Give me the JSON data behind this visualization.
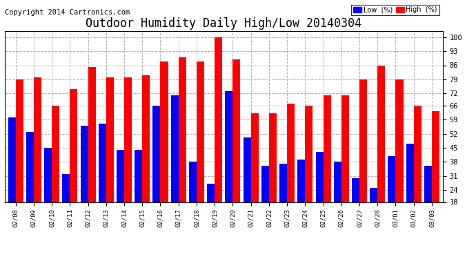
{
  "title": "Outdoor Humidity Daily High/Low 20140304",
  "copyright": "Copyright 2014 Cartronics.com",
  "dates": [
    "02/08",
    "02/09",
    "02/10",
    "02/11",
    "02/12",
    "02/13",
    "02/14",
    "02/15",
    "02/16",
    "02/17",
    "02/18",
    "02/19",
    "02/20",
    "02/21",
    "02/22",
    "02/23",
    "02/24",
    "02/25",
    "02/26",
    "02/27",
    "02/28",
    "03/01",
    "03/02",
    "03/03"
  ],
  "high": [
    79,
    80,
    66,
    74,
    85,
    80,
    80,
    81,
    88,
    90,
    88,
    100,
    89,
    62,
    62,
    67,
    66,
    71,
    71,
    79,
    86,
    79,
    66,
    63
  ],
  "low": [
    60,
    53,
    45,
    32,
    56,
    57,
    44,
    44,
    66,
    71,
    38,
    27,
    73,
    50,
    36,
    37,
    39,
    43,
    38,
    30,
    25,
    41,
    47,
    36
  ],
  "bar_color_high": "#ff0000",
  "bar_color_low": "#0000ff",
  "background_color": "#ffffff",
  "plot_bg_color": "#ffffff",
  "grid_color": "#b0b0b0",
  "title_fontsize": 12,
  "copyright_fontsize": 7.5,
  "yticks": [
    18,
    24,
    31,
    38,
    45,
    52,
    59,
    66,
    72,
    79,
    86,
    93,
    100
  ],
  "ymin": 18,
  "ymax": 103,
  "bar_width": 0.42
}
